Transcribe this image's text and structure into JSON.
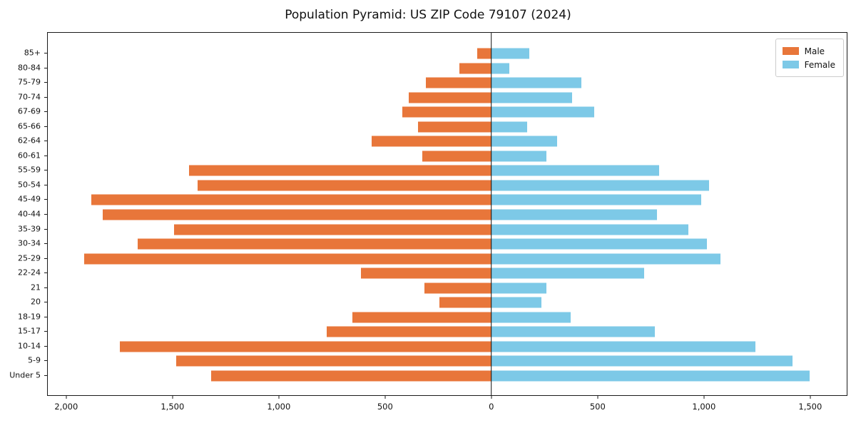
{
  "title": "Population Pyramid: US ZIP Code 79107 (2024)",
  "legend": {
    "male_label": "Male",
    "female_label": "Female"
  },
  "colors": {
    "male": "#e8763a",
    "female": "#7dc9e7",
    "axis": "#1a1a1a",
    "zero_line": "#111111",
    "legend_border": "#cccccc",
    "background": "#ffffff"
  },
  "chart_data": {
    "type": "bar",
    "subtype": "population-pyramid",
    "title": "Population Pyramid: US ZIP Code 79107 (2024)",
    "categories": [
      "85+",
      "80-84",
      "75-79",
      "70-74",
      "67-69",
      "65-66",
      "62-64",
      "60-61",
      "55-59",
      "50-54",
      "45-49",
      "40-44",
      "35-39",
      "30-34",
      "25-29",
      "22-24",
      "21",
      "20",
      "18-19",
      "15-17",
      "10-14",
      "5-9",
      "Under 5"
    ],
    "series": [
      {
        "name": "Male",
        "side": "left",
        "color": "#e8763a",
        "values": [
          65,
          150,
          310,
          390,
          420,
          345,
          565,
          325,
          1425,
          1385,
          1885,
          1830,
          1495,
          1665,
          1920,
          615,
          315,
          245,
          655,
          775,
          1750,
          1485,
          1320
        ]
      },
      {
        "name": "Female",
        "side": "right",
        "color": "#7dc9e7",
        "values": [
          180,
          85,
          425,
          380,
          485,
          170,
          310,
          260,
          790,
          1025,
          990,
          780,
          930,
          1015,
          1080,
          720,
          260,
          235,
          375,
          770,
          1245,
          1420,
          1500
        ]
      }
    ],
    "x_tick_values": [
      -2000,
      -1500,
      -1000,
      -500,
      0,
      500,
      1000,
      1500
    ],
    "x_tick_labels": [
      "2,000",
      "1,500",
      "1,000",
      "500",
      "0",
      "500",
      "1,000",
      "1,500"
    ],
    "xlim": [
      -2090,
      1675
    ],
    "zero_line": true,
    "grid": false,
    "legend_position": "upper right",
    "bar_thickness_ratio": 0.73
  }
}
